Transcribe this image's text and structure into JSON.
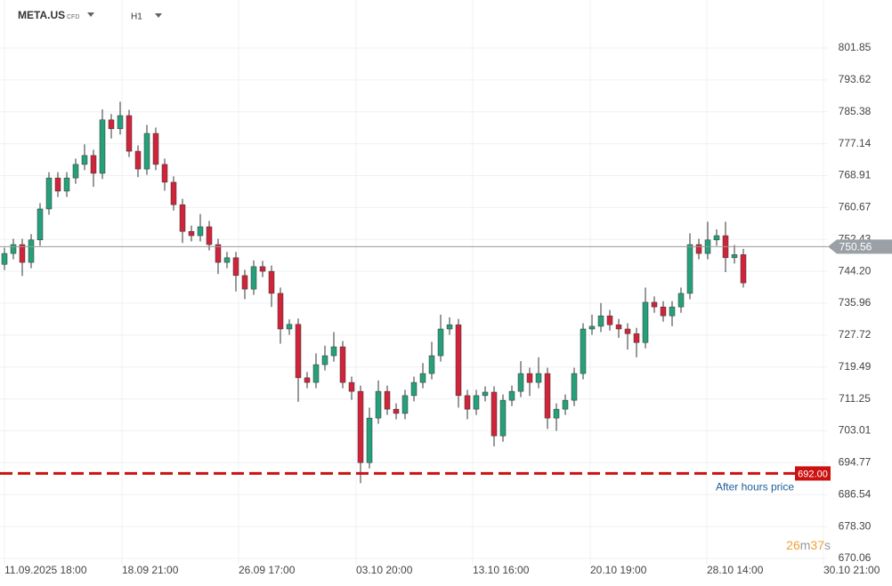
{
  "header": {
    "symbol": "META.US",
    "badge": "CFD",
    "timeframe": "H1"
  },
  "chart_data": {
    "type": "candlestick",
    "up_color": "#26a07a",
    "down_color": "#d0243a",
    "xlim": [
      -0.5,
      92.5
    ],
    "ylim": [
      668.45,
      814.25
    ],
    "grid": true,
    "xticks": [
      {
        "value": 0,
        "label": "11.09.2025 18:00"
      },
      {
        "value": 13.2,
        "label": "18.09 21:00"
      },
      {
        "value": 26.3,
        "label": "26.09 17:00"
      },
      {
        "value": 39.5,
        "label": "03.10 20:00"
      },
      {
        "value": 52.6,
        "label": "13.10 16:00"
      },
      {
        "value": 65.8,
        "label": "20.10 19:00"
      },
      {
        "value": 78.9,
        "label": "28.10 14:00"
      },
      {
        "value": 92,
        "label": "30.10 21:00"
      }
    ],
    "yticks": [
      670.06,
      {
        "value": 678.3,
        "label": "678.30"
      },
      686.54,
      694.77,
      703.01,
      711.25,
      719.49,
      727.72,
      735.96,
      {
        "value": 744.2,
        "label": "744.20"
      },
      752.43,
      760.67,
      768.91,
      777.14,
      785.38,
      793.62,
      801.85
    ],
    "current_price": 750.56,
    "after_hours": {
      "value": 692,
      "label": "692.00",
      "text": "After hours price"
    },
    "timer": [
      "26",
      "m",
      "37",
      "s"
    ],
    "candles": [
      [
        746.0,
        750.3,
        744.5,
        748.8
      ],
      [
        748.8,
        752.6,
        747.3,
        751.1
      ],
      [
        751.1,
        752.6,
        743.0,
        746.5
      ],
      [
        746.5,
        753.8,
        745.0,
        752.3
      ],
      [
        752.3,
        761.8,
        750.8,
        760.3
      ],
      [
        760.3,
        769.8,
        758.8,
        768.3
      ],
      [
        768.3,
        769.8,
        763.4,
        764.9
      ],
      [
        764.9,
        769.8,
        763.4,
        768.3
      ],
      [
        768.3,
        773.3,
        766.8,
        771.8
      ],
      [
        771.8,
        777.0,
        770.3,
        774.1
      ],
      [
        774.1,
        775.6,
        766.0,
        769.5
      ],
      [
        769.5,
        786.0,
        768.0,
        783.3
      ],
      [
        783.3,
        784.8,
        778.5,
        781.0
      ],
      [
        781.0,
        788.0,
        779.5,
        784.4
      ],
      [
        784.4,
        785.9,
        773.7,
        775.2
      ],
      [
        775.2,
        776.7,
        768.5,
        770.6
      ],
      [
        770.6,
        782.0,
        769.1,
        779.8
      ],
      [
        779.8,
        781.3,
        770.3,
        771.8
      ],
      [
        771.8,
        773.3,
        765.0,
        767.2
      ],
      [
        767.2,
        768.7,
        759.9,
        761.4
      ],
      [
        761.4,
        762.9,
        751.5,
        754.5
      ],
      [
        754.5,
        756.0,
        751.9,
        753.4
      ],
      [
        753.4,
        759.0,
        751.9,
        755.7
      ],
      [
        755.7,
        757.2,
        749.6,
        751.1
      ],
      [
        751.1,
        752.6,
        743.5,
        746.5
      ],
      [
        746.5,
        749.2,
        745.0,
        747.7
      ],
      [
        747.7,
        749.2,
        739.0,
        743.1
      ],
      [
        743.1,
        744.6,
        737.0,
        739.6
      ],
      [
        739.6,
        747.0,
        738.1,
        745.4
      ],
      [
        745.4,
        746.9,
        742.7,
        744.2
      ],
      [
        744.2,
        745.7,
        735.0,
        738.5
      ],
      [
        738.5,
        740.0,
        725.5,
        729.3
      ],
      [
        729.3,
        731.8,
        727.8,
        730.5
      ],
      [
        730.5,
        732.0,
        710.5,
        716.7
      ],
      [
        716.7,
        718.2,
        714.0,
        715.5
      ],
      [
        715.5,
        723.0,
        714.0,
        720.1
      ],
      [
        720.1,
        725.0,
        718.6,
        722.4
      ],
      [
        722.4,
        728.5,
        720.9,
        724.7
      ],
      [
        724.7,
        726.2,
        714.0,
        715.5
      ],
      [
        715.5,
        717.0,
        711.0,
        713.2
      ],
      [
        713.2,
        714.7,
        689.5,
        694.8
      ],
      [
        694.8,
        709.0,
        693.3,
        706.3
      ],
      [
        706.3,
        716.0,
        704.8,
        713.2
      ],
      [
        713.2,
        714.7,
        707.1,
        708.6
      ],
      [
        708.6,
        710.1,
        706.0,
        707.5
      ],
      [
        707.5,
        713.6,
        706.0,
        712.1
      ],
      [
        712.1,
        717.0,
        710.6,
        715.5
      ],
      [
        715.5,
        720.5,
        714.0,
        717.8
      ],
      [
        717.8,
        726.0,
        716.3,
        722.4
      ],
      [
        722.4,
        733.0,
        720.9,
        729.3
      ],
      [
        729.3,
        732.3,
        727.8,
        730.4
      ],
      [
        730.4,
        731.9,
        709.0,
        712.1
      ],
      [
        712.1,
        713.6,
        706.0,
        708.6
      ],
      [
        708.6,
        713.6,
        707.1,
        712.1
      ],
      [
        712.1,
        714.5,
        710.6,
        713.0
      ],
      [
        713.0,
        714.5,
        699.0,
        701.7
      ],
      [
        701.7,
        712.4,
        700.2,
        710.9
      ],
      [
        710.9,
        714.7,
        709.4,
        713.2
      ],
      [
        713.2,
        721.0,
        711.7,
        717.8
      ],
      [
        717.8,
        719.3,
        712.0,
        715.5
      ],
      [
        715.5,
        722.0,
        714.0,
        717.8
      ],
      [
        717.8,
        719.3,
        703.5,
        706.3
      ],
      [
        706.3,
        710.1,
        703.0,
        708.6
      ],
      [
        708.6,
        712.4,
        707.1,
        710.9
      ],
      [
        710.9,
        719.3,
        709.4,
        717.8
      ],
      [
        717.8,
        730.8,
        716.3,
        729.3
      ],
      [
        729.3,
        733.0,
        727.8,
        730.0
      ],
      [
        730.0,
        736.0,
        728.5,
        732.7
      ],
      [
        732.7,
        734.2,
        728.9,
        730.4
      ],
      [
        730.4,
        731.9,
        727.0,
        729.3
      ],
      [
        729.3,
        730.8,
        724.0,
        728.1
      ],
      [
        728.1,
        729.6,
        722.0,
        725.8
      ],
      [
        725.8,
        740.0,
        724.3,
        736.2
      ],
      [
        736.2,
        737.7,
        733.5,
        735.0
      ],
      [
        735.0,
        736.5,
        731.2,
        732.7
      ],
      [
        732.7,
        736.5,
        730.0,
        735.0
      ],
      [
        735.0,
        740.0,
        733.5,
        738.5
      ],
      [
        738.5,
        754.0,
        737.0,
        751.1
      ],
      [
        751.1,
        752.6,
        747.3,
        748.8
      ],
      [
        748.8,
        757.0,
        747.3,
        752.3
      ],
      [
        752.3,
        755.0,
        750.8,
        753.4
      ],
      [
        753.4,
        757.0,
        744.0,
        747.7
      ],
      [
        747.7,
        751.0,
        746.2,
        748.5
      ],
      [
        748.5,
        750.0,
        740.0,
        741.2
      ]
    ]
  }
}
